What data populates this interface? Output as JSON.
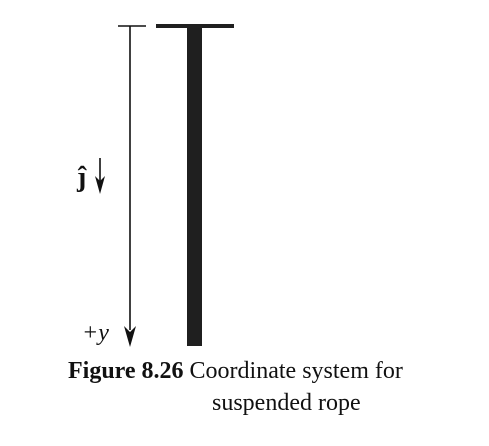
{
  "figure": {
    "unit_vector_label": "ĵ",
    "axis_label": "+y"
  },
  "caption": {
    "label": "Figure 8.26",
    "text_line_1": "Coordinate system for",
    "text_line_2": "suspended rope"
  },
  "colors": {
    "ink": "#111111",
    "rope": "#1f1f1f",
    "background": "#ffffff"
  }
}
